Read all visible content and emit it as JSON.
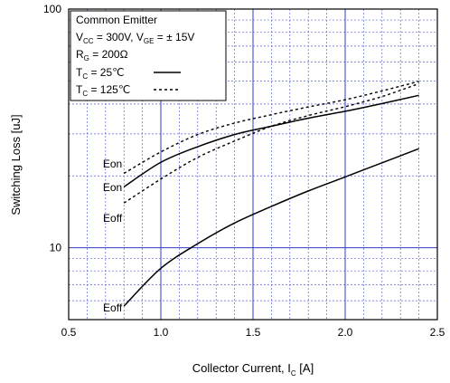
{
  "chart_data": {
    "type": "line",
    "xlabel": "Collector Current, I",
    "xlabel_sub": "C",
    "xlabel_unit": " [A]",
    "ylabel": "Switching Loss [uJ]",
    "xlim": [
      0.5,
      2.5
    ],
    "ylim": [
      5,
      100
    ],
    "yscale": "log",
    "grid": true,
    "x_ticks": [
      "0.5",
      "1.0",
      "1.5",
      "2.0",
      "2.5"
    ],
    "y_ticks": [
      "10",
      "100"
    ],
    "legend": {
      "placement": "top-left",
      "lines": [
        {
          "parts": [
            {
              "t": "Common Emitter"
            }
          ]
        },
        {
          "parts": [
            {
              "t": "V"
            },
            {
              "t": "CC",
              "sub": true
            },
            {
              "t": " = 300V, V"
            },
            {
              "t": "GE",
              "sub": true
            },
            {
              "t": " = ±  15V"
            }
          ]
        },
        {
          "parts": [
            {
              "t": "R"
            },
            {
              "t": "G",
              "sub": true
            },
            {
              "t": " = 200Ω"
            }
          ]
        },
        {
          "parts": [
            {
              "t": "T"
            },
            {
              "t": "C",
              "sub": true
            },
            {
              "t": " =   25℃"
            }
          ],
          "sample": "solid"
        },
        {
          "parts": [
            {
              "t": "T"
            },
            {
              "t": "C",
              "sub": true
            },
            {
              "t": " = 125℃"
            }
          ],
          "sample": "dotted"
        }
      ]
    },
    "series": [
      {
        "label": "Eon",
        "temp": "25",
        "style": "solid",
        "x": [
          0.8,
          1.0,
          1.2,
          1.4,
          1.6,
          1.8,
          2.0,
          2.2,
          2.4
        ],
        "y": [
          18,
          22.8,
          26.5,
          29.8,
          32.3,
          34.9,
          37.3,
          40.2,
          43.5
        ]
      },
      {
        "label": "Eon",
        "temp": "125",
        "style": "dotted",
        "x": [
          0.8,
          1.0,
          1.2,
          1.4,
          1.6,
          1.8,
          2.0,
          2.2,
          2.4
        ],
        "y": [
          20.5,
          25.2,
          29.8,
          33.3,
          36.1,
          38.9,
          41.7,
          45.4,
          49.8
        ]
      },
      {
        "label": "Eoff",
        "temp": "125",
        "style": "dotted",
        "x": [
          0.8,
          1.0,
          1.2,
          1.4,
          1.6,
          1.8,
          2.0,
          2.2,
          2.4
        ],
        "y": [
          15.4,
          19.4,
          23.9,
          28.0,
          32.3,
          35.8,
          39.0,
          43.0,
          48.7
        ]
      },
      {
        "label": "Eoff",
        "temp": "25",
        "style": "solid",
        "x": [
          0.8,
          1.0,
          1.2,
          1.4,
          1.6,
          1.8,
          2.0,
          2.2,
          2.4
        ],
        "y": [
          5.7,
          8.2,
          10.4,
          12.7,
          14.9,
          17.3,
          19.8,
          22.7,
          26.0
        ]
      }
    ],
    "curve_labels": [
      {
        "text": "Eon",
        "ref_x": 0.8,
        "ref_y": 22.5
      },
      {
        "text": "Eon",
        "ref_x": 0.8,
        "ref_y": 17.9
      },
      {
        "text": "Eoff",
        "ref_x": 0.8,
        "ref_y": 13.3
      },
      {
        "text": "Eoff",
        "ref_x": 0.8,
        "ref_y": 5.6
      }
    ]
  }
}
